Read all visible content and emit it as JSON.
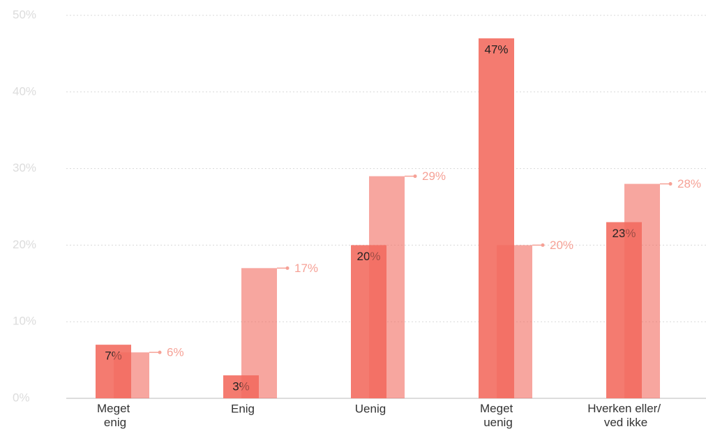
{
  "chart_data": {
    "type": "bar",
    "categories": [
      "Meget enig",
      "Enig",
      "Uenig",
      "Meget uenig",
      "Hverken eller/ ved ikke"
    ],
    "series": [
      {
        "color": "#f47b70",
        "values": [
          7,
          3,
          20,
          47,
          23
        ],
        "value_labels": [
          "7%",
          "3%",
          "20%",
          "47%",
          "23%"
        ]
      },
      {
        "color": "#f26b5f",
        "values": [
          6,
          17,
          29,
          20,
          28
        ],
        "value_labels": [
          "6%",
          "17%",
          "29%",
          "20%",
          "28%"
        ]
      }
    ],
    "ylim": [
      0,
      50
    ],
    "yticks": [
      {
        "value": 0,
        "label": "0%"
      },
      {
        "value": 10,
        "label": "10%"
      },
      {
        "value": 20,
        "label": "20%"
      },
      {
        "value": 30,
        "label": "30%"
      },
      {
        "value": 40,
        "label": "40%"
      },
      {
        "value": 50,
        "label": "50%"
      }
    ],
    "grid": true
  }
}
